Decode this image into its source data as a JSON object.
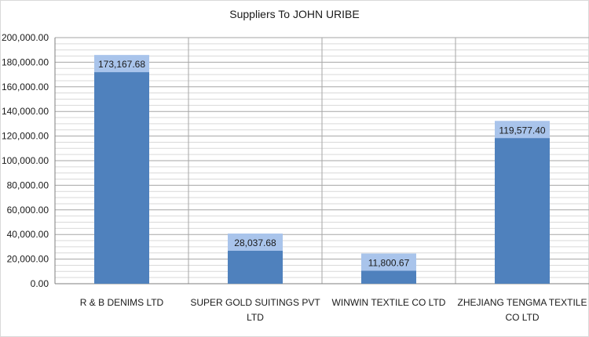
{
  "chart_data": {
    "type": "bar",
    "title": "Suppliers To JOHN URIBE",
    "categories": [
      "R & B DENIMS LTD",
      "SUPER GOLD SUITINGS PVT LTD",
      "WINWIN TEXTILE CO LTD",
      "ZHEJIANG TENGMA TEXTILE CO LTD"
    ],
    "category_label_lines": [
      [
        "R & B DENIMS LTD"
      ],
      [
        "SUPER GOLD SUITINGS PVT",
        "LTD"
      ],
      [
        "WINWIN TEXTILE CO LTD"
      ],
      [
        "ZHEJIANG TENGMA TEXTILE",
        "CO LTD"
      ]
    ],
    "values": [
      173167.68,
      28037.68,
      11800.67,
      119577.4
    ],
    "data_labels": [
      "173,167.68",
      "28,037.68",
      "11,800.67",
      "119,577.40"
    ],
    "y_ticks": [
      0,
      20000,
      40000,
      60000,
      80000,
      100000,
      120000,
      140000,
      160000,
      180000,
      200000
    ],
    "y_tick_labels": [
      "0.00",
      "20,000.00",
      "40,000.00",
      "60,000.00",
      "80,000.00",
      "100,000.00",
      "120,000.00",
      "140,000.00",
      "160,000.00",
      "180,000.00",
      "200,000.00"
    ],
    "ylim": [
      0,
      200000
    ],
    "minor_step": 5000,
    "xlabel": "",
    "ylabel": "",
    "grid": true,
    "legend": "none",
    "colors": {
      "bar": "#4f81bd",
      "label_bg": "#a9c4eb",
      "major_grid": "#a6a6a6",
      "minor_grid": "#d9d9d9",
      "axis": "#7f7f7f"
    }
  }
}
